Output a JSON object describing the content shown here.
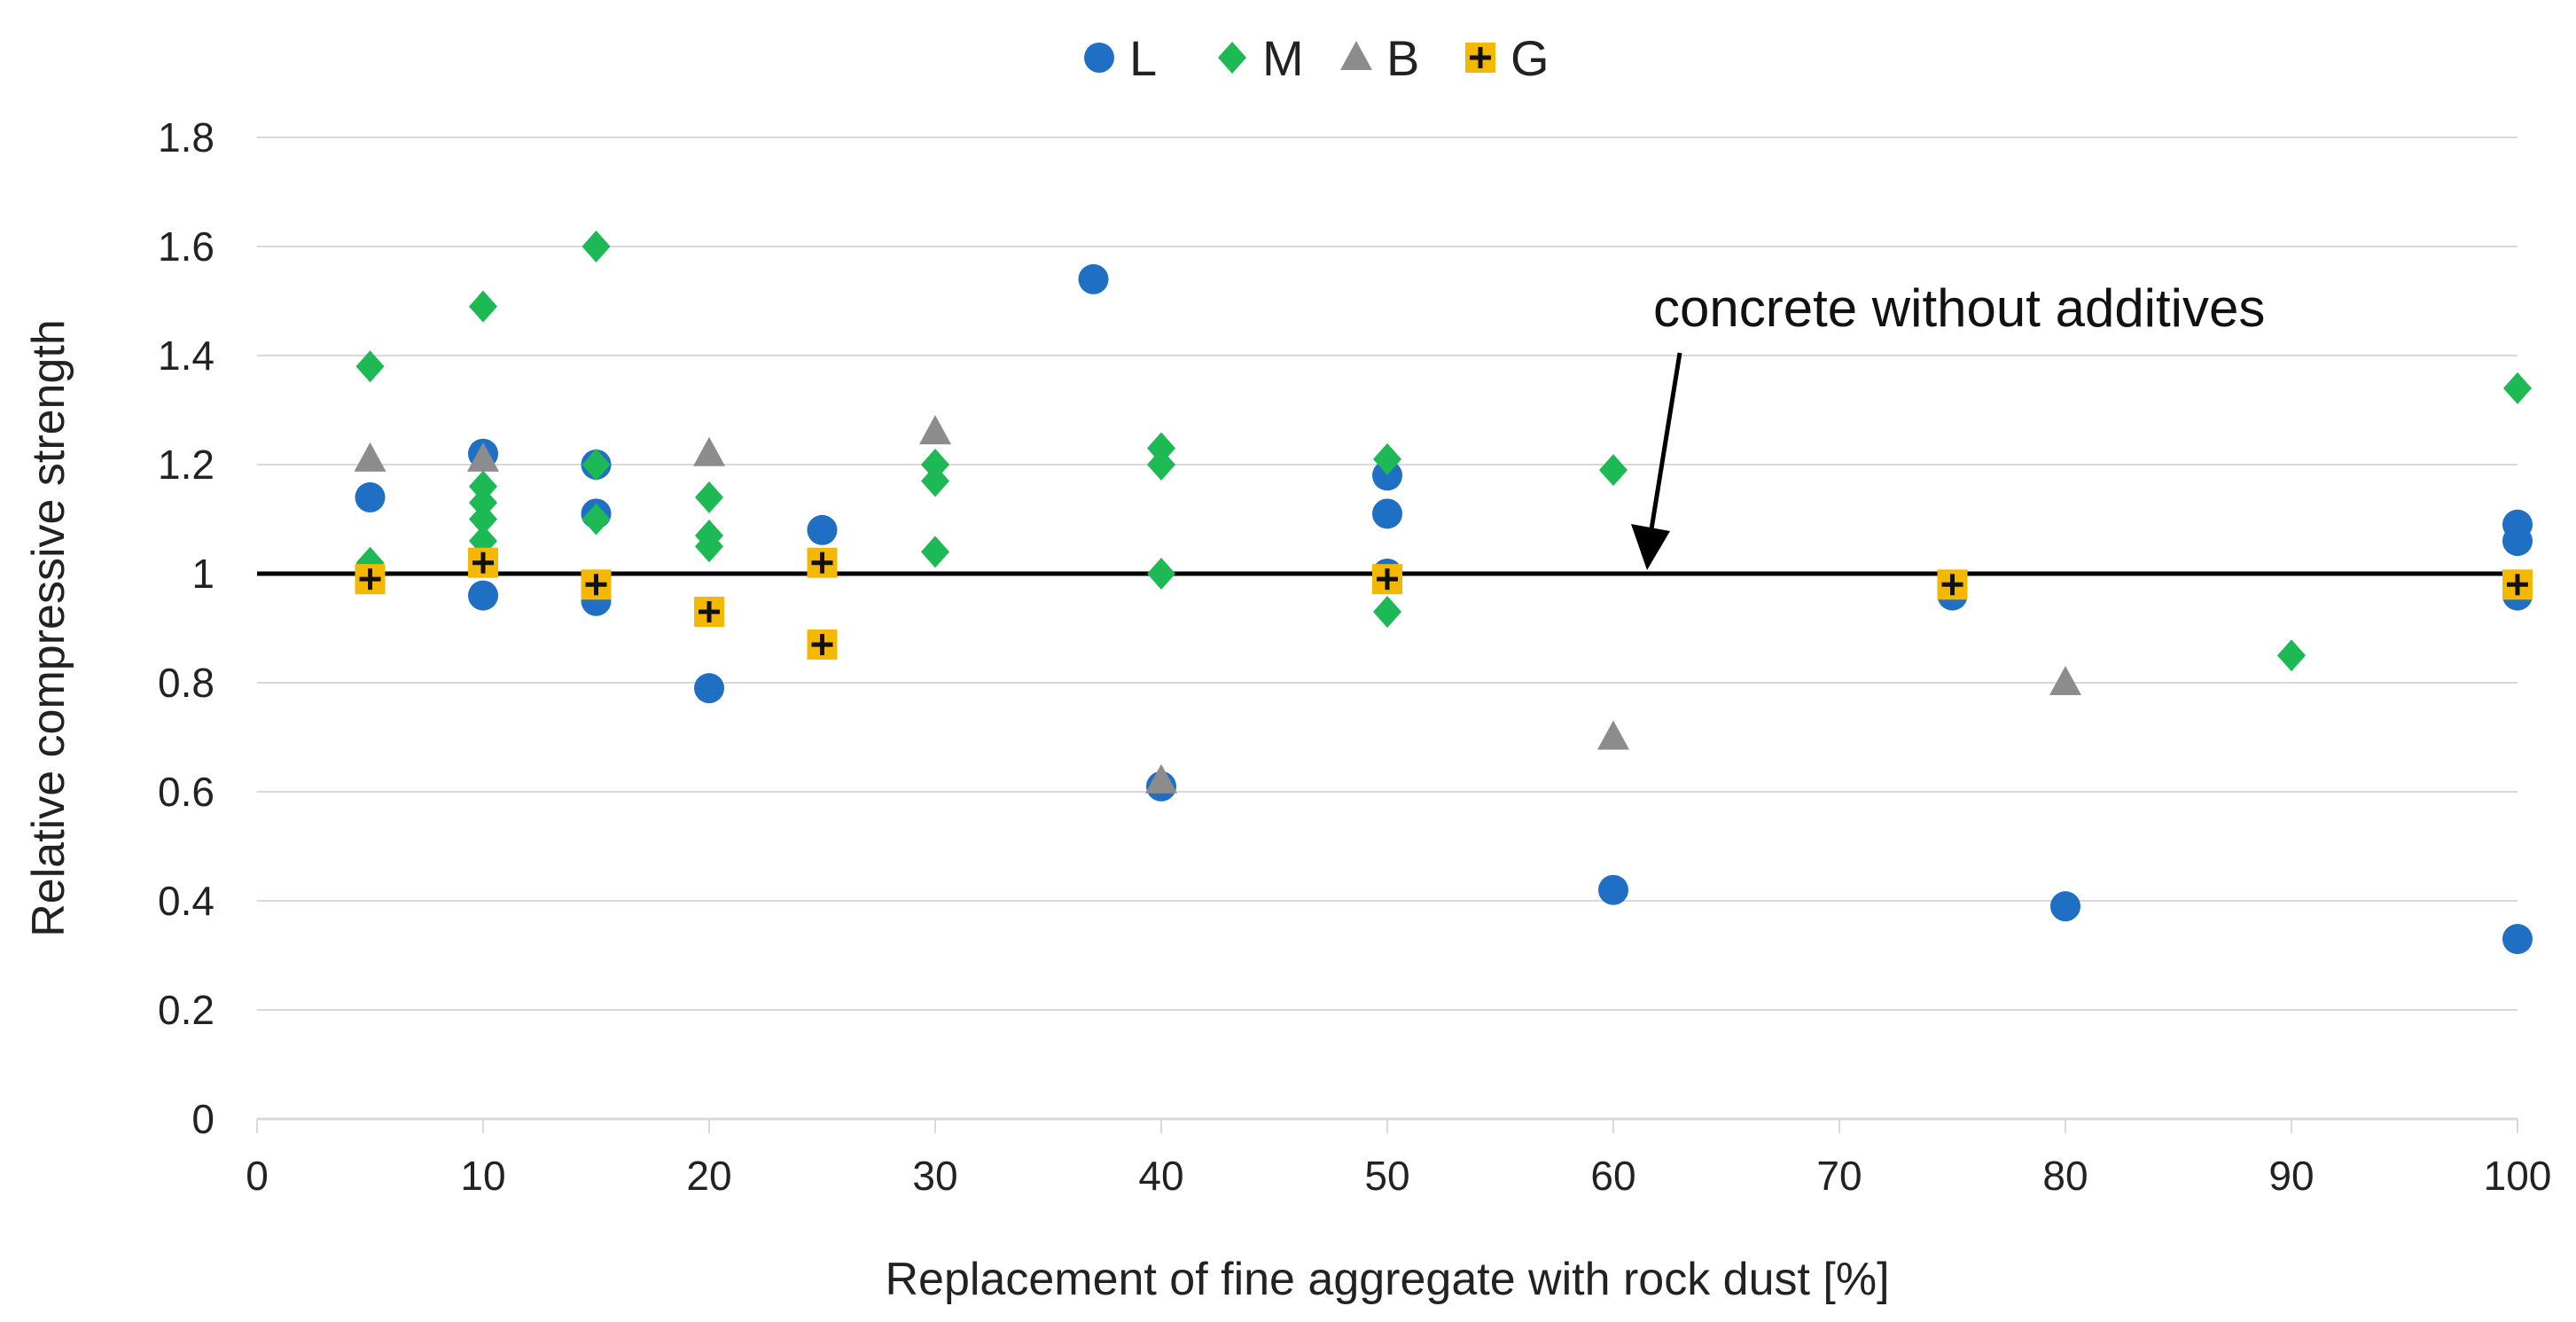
{
  "chart_data": {
    "type": "scatter",
    "title": "",
    "xlabel": "Replacement of fine aggregate with rock dust [%]",
    "ylabel": "Relative compressive strength",
    "xlim": [
      0,
      100
    ],
    "ylim": [
      0,
      1.8
    ],
    "x_ticks": [
      0,
      10,
      20,
      30,
      40,
      50,
      60,
      70,
      80,
      90,
      100
    ],
    "y_ticks": [
      0,
      0.2,
      0.4,
      0.6,
      0.8,
      1,
      1.2,
      1.4,
      1.6,
      1.8
    ],
    "x_tick_labels": [
      "0",
      "10",
      "20",
      "30",
      "40",
      "50",
      "60",
      "70",
      "80",
      "90",
      "100"
    ],
    "y_tick_labels": [
      "0",
      "0.2",
      "0.4",
      "0.6",
      "0.8",
      "1",
      "1.2",
      "1.4",
      "1.6",
      "1.8"
    ],
    "grid": "horizontal",
    "legend_position": "top-center",
    "reference_line": {
      "y": 1.0,
      "label": "concrete without additives"
    },
    "series": [
      {
        "name": "L",
        "marker": "circle",
        "color": "#1f6fc5",
        "points": [
          [
            5,
            1.14
          ],
          [
            10,
            1.22
          ],
          [
            10,
            0.96
          ],
          [
            15,
            1.2
          ],
          [
            15,
            1.11
          ],
          [
            15,
            0.95
          ],
          [
            20,
            0.79
          ],
          [
            25,
            1.08
          ],
          [
            37,
            1.54
          ],
          [
            40,
            0.61
          ],
          [
            50,
            1.18
          ],
          [
            50,
            1.11
          ],
          [
            50,
            1.0
          ],
          [
            60,
            0.42
          ],
          [
            75,
            0.96
          ],
          [
            80,
            0.39
          ],
          [
            100,
            1.09
          ],
          [
            100,
            1.06
          ],
          [
            100,
            0.96
          ],
          [
            100,
            0.33
          ]
        ]
      },
      {
        "name": "M",
        "marker": "diamond",
        "color": "#1db954",
        "points": [
          [
            5,
            1.38
          ],
          [
            5,
            1.02
          ],
          [
            10,
            1.49
          ],
          [
            10,
            1.16
          ],
          [
            10,
            1.13
          ],
          [
            10,
            1.1
          ],
          [
            10,
            1.06
          ],
          [
            15,
            1.6
          ],
          [
            15,
            1.2
          ],
          [
            15,
            1.1
          ],
          [
            20,
            1.14
          ],
          [
            20,
            1.07
          ],
          [
            20,
            1.05
          ],
          [
            30,
            1.2
          ],
          [
            30,
            1.17
          ],
          [
            30,
            1.04
          ],
          [
            40,
            1.23
          ],
          [
            40,
            1.2
          ],
          [
            40,
            1.0
          ],
          [
            50,
            1.21
          ],
          [
            50,
            0.93
          ],
          [
            60,
            1.19
          ],
          [
            90,
            0.85
          ],
          [
            100,
            1.34
          ]
        ]
      },
      {
        "name": "B",
        "marker": "triangle",
        "color": "#8c8c8c",
        "points": [
          [
            5,
            1.21
          ],
          [
            10,
            1.21
          ],
          [
            20,
            1.22
          ],
          [
            30,
            1.26
          ],
          [
            40,
            0.62
          ],
          [
            60,
            0.7
          ],
          [
            80,
            0.8
          ]
        ]
      },
      {
        "name": "G",
        "marker": "plus-square",
        "color": "#f5b800",
        "points": [
          [
            5,
            0.99
          ],
          [
            10,
            1.02
          ],
          [
            15,
            0.98
          ],
          [
            20,
            0.93
          ],
          [
            25,
            1.02
          ],
          [
            25,
            0.87
          ],
          [
            50,
            0.99
          ],
          [
            75,
            0.98
          ],
          [
            100,
            0.98
          ]
        ]
      }
    ]
  }
}
